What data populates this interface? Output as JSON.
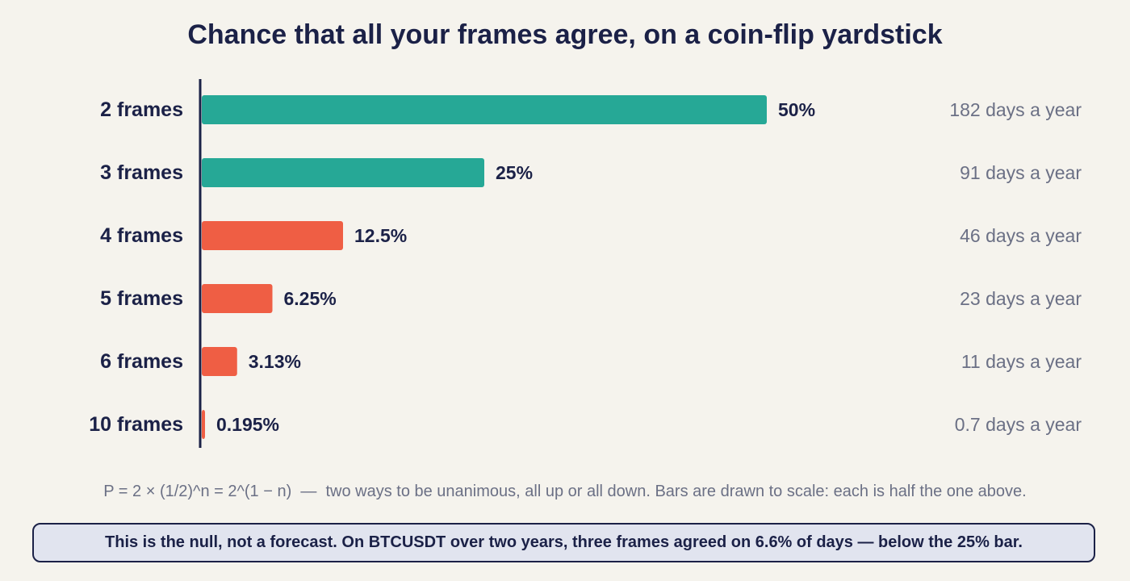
{
  "chart_data": {
    "type": "bar",
    "orientation": "horizontal",
    "title": "Chance that all your frames agree, on a coin-flip yardstick",
    "categories": [
      "2 frames",
      "3 frames",
      "4 frames",
      "5 frames",
      "6 frames",
      "10 frames"
    ],
    "values": [
      50,
      25,
      12.5,
      6.25,
      3.125,
      0.195
    ],
    "value_labels": [
      "50%",
      "25%",
      "12.5%",
      "6.25%",
      "3.13%",
      "0.195%"
    ],
    "days_labels": [
      "182 days a year",
      "91 days a year",
      "46 days a year",
      "23 days a year",
      "11 days a year",
      "0.7 days a year"
    ],
    "bar_colors": [
      "#26a896",
      "#26a896",
      "#ef5e44",
      "#ef5e44",
      "#ef5e44",
      "#ef5e44"
    ],
    "xlim": [
      0,
      50
    ],
    "grid": false,
    "legend": "none"
  },
  "colors": {
    "text": "#1b2147",
    "muted": "#6b7085",
    "teal": "#26a896",
    "coral": "#ef5e44",
    "background": "#f5f3ed",
    "callout_bg": "#e1e4ef"
  },
  "footnote": "P = 2 × (1/2)^n = 2^(1 − n)  —  two ways to be unanimous, all up or all down. Bars are drawn to scale: each is half the one above.",
  "callout": "This is the null, not a forecast. On BTCUSDT over two years, three frames agreed on 6.6% of days — below the 25% bar."
}
